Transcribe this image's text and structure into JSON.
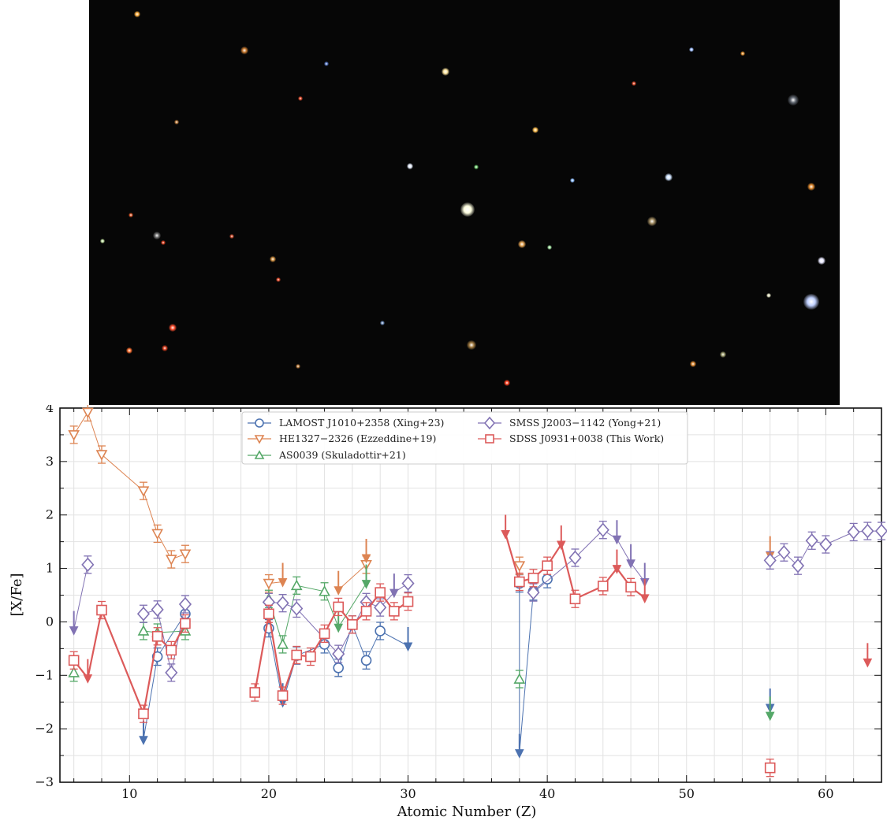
{
  "image": {
    "stars": [
      {
        "x": 61,
        "y": 18,
        "r": 4,
        "color": "#ffb040"
      },
      {
        "x": 197,
        "y": 64,
        "r": 5,
        "color": "#c87a30"
      },
      {
        "x": 452,
        "y": 91,
        "r": 5,
        "color": "#ffe6a0"
      },
      {
        "x": 301,
        "y": 81,
        "r": 3,
        "color": "#5a7ac8"
      },
      {
        "x": 268,
        "y": 125,
        "r": 3,
        "color": "#e04a2a"
      },
      {
        "x": 566,
        "y": 165,
        "r": 4,
        "color": "#ffc050"
      },
      {
        "x": 407,
        "y": 211,
        "r": 4,
        "color": "#e8f0ff"
      },
      {
        "x": 480,
        "y": 266,
        "r": 9,
        "color": "#ffffe0"
      },
      {
        "x": 735,
        "y": 225,
        "r": 5,
        "color": "#d0e4ff"
      },
      {
        "x": 714,
        "y": 281,
        "r": 6,
        "color": "#a08a60"
      },
      {
        "x": 893,
        "y": 127,
        "r": 7,
        "color": "#606670"
      },
      {
        "x": 916,
        "y": 237,
        "r": 5,
        "color": "#e08a30"
      },
      {
        "x": 929,
        "y": 331,
        "r": 5,
        "color": "#e8e8ff"
      },
      {
        "x": 916,
        "y": 383,
        "r": 10,
        "color": "#c0d0ff"
      },
      {
        "x": 106,
        "y": 416,
        "r": 5,
        "color": "#ff5030"
      },
      {
        "x": 96,
        "y": 442,
        "r": 4,
        "color": "#e04020"
      },
      {
        "x": 485,
        "y": 438,
        "r": 6,
        "color": "#a07a40"
      },
      {
        "x": 530,
        "y": 486,
        "r": 4,
        "color": "#ff4020"
      },
      {
        "x": 86,
        "y": 299,
        "r": 5,
        "color": "#707070"
      },
      {
        "x": 17,
        "y": 306,
        "r": 3,
        "color": "#c0e0a0"
      },
      {
        "x": 94,
        "y": 308,
        "r": 3,
        "color": "#e04020"
      },
      {
        "x": 764,
        "y": 63,
        "r": 3,
        "color": "#a0c0ff"
      },
      {
        "x": 549,
        "y": 310,
        "r": 5,
        "color": "#e0a050"
      },
      {
        "x": 181,
        "y": 300,
        "r": 3,
        "color": "#d05030"
      },
      {
        "x": 53,
        "y": 273,
        "r": 3,
        "color": "#e05a2a"
      },
      {
        "x": 862,
        "y": 375,
        "r": 3,
        "color": "#e0e0c0"
      },
      {
        "x": 804,
        "y": 450,
        "r": 4,
        "color": "#a0a070"
      },
      {
        "x": 766,
        "y": 462,
        "r": 4,
        "color": "#e08a30"
      },
      {
        "x": 691,
        "y": 106,
        "r": 3,
        "color": "#e04a2a"
      },
      {
        "x": 233,
        "y": 329,
        "r": 4,
        "color": "#d09040"
      },
      {
        "x": 51,
        "y": 445,
        "r": 4,
        "color": "#ff7030"
      },
      {
        "x": 111,
        "y": 155,
        "r": 3,
        "color": "#c08040"
      },
      {
        "x": 372,
        "y": 410,
        "r": 3,
        "color": "#7090c0"
      },
      {
        "x": 584,
        "y": 314,
        "r": 3,
        "color": "#a0e0a0"
      },
      {
        "x": 240,
        "y": 355,
        "r": 3,
        "color": "#e04a2a"
      },
      {
        "x": 265,
        "y": 465,
        "r": 3,
        "color": "#c08040"
      },
      {
        "x": 829,
        "y": 68,
        "r": 3,
        "color": "#e09030"
      },
      {
        "x": 491,
        "y": 212,
        "r": 3,
        "color": "#70d070"
      },
      {
        "x": 613,
        "y": 229,
        "r": 3,
        "color": "#90c0ff"
      }
    ]
  },
  "chart_data": {
    "type": "scatter",
    "xlabel": "Atomic Number (Z)",
    "ylabel": "[X/Fe]",
    "xlim": [
      5,
      64
    ],
    "ylim": [
      -3,
      4
    ],
    "xticks": [
      10,
      20,
      30,
      40,
      50,
      60
    ],
    "yticks": [
      -3,
      -2,
      -1,
      0,
      1,
      2,
      3,
      4
    ],
    "grid": true,
    "legend_position": "top-center",
    "legend_entries": [
      "LAMOST J1010+2358 (Xing+23)",
      "HE1327−2326 (Ezzeddine+19)",
      "AS0039 (Skuladottir+21)",
      "SMSS J2003−1142 (Yong+21)",
      "SDSS J0931+0038 (This Work)"
    ],
    "x_tick_labels": [
      "10",
      "20",
      "30",
      "40",
      "50",
      "60"
    ],
    "y_tick_labels": [
      "−3",
      "−2",
      "−1",
      "0",
      "1",
      "2",
      "3",
      "4"
    ],
    "series": [
      {
        "name": "LAMOST J1010+2358 (Xing+23)",
        "color": "#4c72b0",
        "marker": "circle",
        "points": [
          [
            12,
            -0.65
          ],
          [
            14,
            0.15
          ],
          [
            20,
            -0.12
          ],
          [
            22,
            -0.63
          ],
          [
            24,
            -0.42
          ],
          [
            25,
            -0.86
          ],
          [
            26,
            -0.05
          ],
          [
            27,
            -0.72
          ],
          [
            28,
            -0.17
          ],
          [
            38,
            0.72
          ],
          [
            39,
            0.57
          ],
          [
            40,
            0.8
          ]
        ],
        "upper_limits": [
          [
            11,
            -2.2
          ],
          [
            21,
            -1.5
          ],
          [
            30,
            -0.45
          ],
          [
            38,
            -2.45
          ],
          [
            56,
            -1.6
          ]
        ]
      },
      {
        "name": "HE1327−2326 (Ezzeddine+19)",
        "color": "#dd8452",
        "marker": "triangle-down",
        "points": [
          [
            6,
            3.5
          ],
          [
            7,
            3.92
          ],
          [
            8,
            3.13
          ],
          [
            11,
            2.45
          ],
          [
            12,
            1.65
          ],
          [
            13,
            1.17
          ],
          [
            14,
            1.27
          ],
          [
            20,
            0.72
          ],
          [
            27,
            1.07
          ],
          [
            38,
            1.05
          ]
        ],
        "upper_limits": [
          [
            21,
            0.75
          ],
          [
            25,
            0.6
          ],
          [
            27,
            1.2
          ],
          [
            56,
            1.25
          ]
        ]
      },
      {
        "name": "AS0039 (Skuladottir+21)",
        "color": "#55a868",
        "marker": "triangle-up",
        "points": [
          [
            6,
            -0.95
          ],
          [
            11,
            -0.17
          ],
          [
            12,
            -0.2
          ],
          [
            14,
            -0.17
          ],
          [
            20,
            0.43
          ],
          [
            21,
            -0.42
          ],
          [
            22,
            0.68
          ],
          [
            24,
            0.57
          ],
          [
            38,
            -1.07
          ]
        ],
        "upper_limits": [
          [
            25,
            -0.1
          ],
          [
            27,
            0.72
          ],
          [
            56,
            -1.75
          ]
        ]
      },
      {
        "name": "SMSS J2003−1142 (Yong+21)",
        "color": "#8172b3",
        "marker": "diamond",
        "points": [
          [
            7,
            1.07
          ],
          [
            11,
            0.15
          ],
          [
            12,
            0.23
          ],
          [
            13,
            -0.95
          ],
          [
            14,
            0.33
          ],
          [
            20,
            0.37
          ],
          [
            21,
            0.35
          ],
          [
            22,
            0.25
          ],
          [
            25,
            -0.6
          ],
          [
            27,
            0.37
          ],
          [
            28,
            0.27
          ],
          [
            30,
            0.72
          ],
          [
            39,
            0.55
          ],
          [
            42,
            1.2
          ],
          [
            44,
            1.72
          ],
          [
            56,
            1.15
          ],
          [
            57,
            1.3
          ],
          [
            58,
            1.05
          ],
          [
            59,
            1.52
          ],
          [
            60,
            1.45
          ],
          [
            62,
            1.68
          ],
          [
            63,
            1.7
          ],
          [
            64,
            1.7
          ]
        ],
        "upper_limits": [
          [
            6,
            -0.15
          ],
          [
            29,
            0.55
          ],
          [
            45,
            1.55
          ],
          [
            46,
            1.1
          ],
          [
            47,
            0.75
          ]
        ]
      },
      {
        "name": "SDSS J0931+0038 (This Work)",
        "color": "#dc5a5a",
        "marker": "square",
        "points": [
          [
            6,
            -0.72
          ],
          [
            8,
            0.22
          ],
          [
            11,
            -1.72
          ],
          [
            12,
            -0.27
          ],
          [
            13,
            -0.53
          ],
          [
            14,
            -0.03
          ],
          [
            19,
            -1.32
          ],
          [
            20,
            0.15
          ],
          [
            21,
            -1.38
          ],
          [
            22,
            -0.62
          ],
          [
            23,
            -0.65
          ],
          [
            24,
            -0.22
          ],
          [
            25,
            0.28
          ],
          [
            26,
            -0.05
          ],
          [
            27,
            0.2
          ],
          [
            28,
            0.55
          ],
          [
            29,
            0.2
          ],
          [
            30,
            0.38
          ],
          [
            38,
            0.75
          ],
          [
            39,
            0.82
          ],
          [
            40,
            1.05
          ],
          [
            42,
            0.43
          ],
          [
            44,
            0.67
          ],
          [
            46,
            0.65
          ],
          [
            56,
            -2.73
          ]
        ],
        "upper_limits": [
          [
            7,
            -1.05
          ],
          [
            37,
            1.65
          ],
          [
            41,
            1.45
          ],
          [
            45,
            1.0
          ],
          [
            47,
            0.45
          ],
          [
            63,
            -0.75
          ]
        ]
      }
    ]
  }
}
